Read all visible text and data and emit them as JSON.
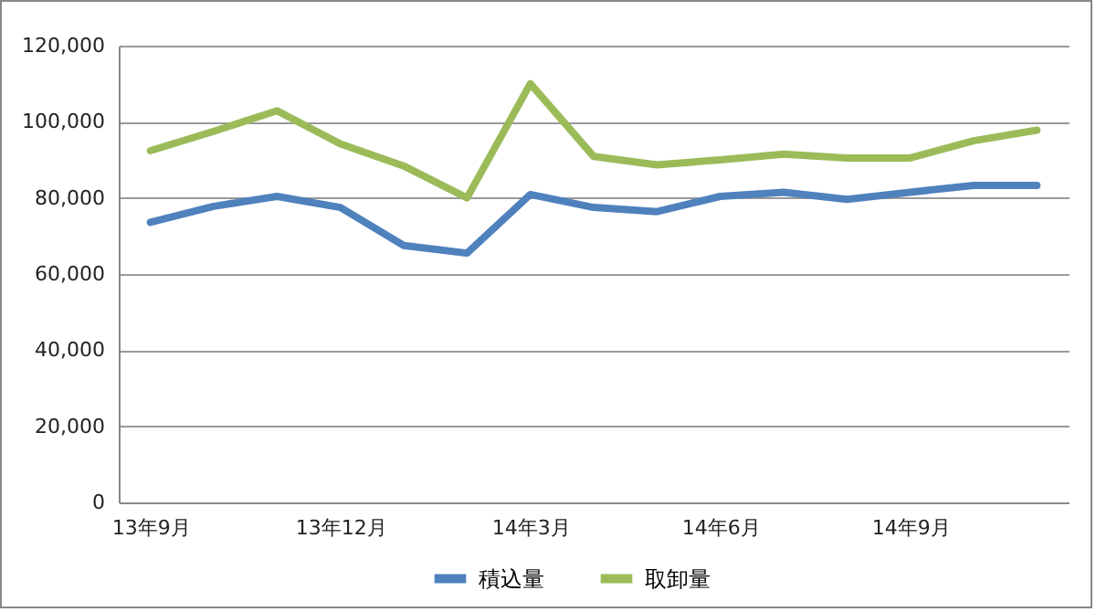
{
  "chart_data": {
    "type": "line",
    "categories": [
      "13年9月",
      null,
      null,
      "13年12月",
      null,
      null,
      "14年3月",
      null,
      null,
      "14年6月",
      null,
      null,
      "14年9月",
      null,
      null
    ],
    "series": [
      {
        "name": "積込量",
        "color": "#4f81bd",
        "values": [
          73600,
          77800,
          80400,
          77500,
          67500,
          65500,
          80900,
          77500,
          76400,
          80400,
          81500,
          79600,
          81500,
          83300,
          83300
        ]
      },
      {
        "name": "取卸量",
        "color": "#9bbb59",
        "values": [
          92400,
          97500,
          102900,
          94200,
          88400,
          80000,
          110000,
          90900,
          88700,
          90000,
          91500,
          90500,
          90500,
          95000,
          97800
        ]
      }
    ],
    "ylim": [
      0,
      120000
    ],
    "yticks": [
      0,
      {
        "value": 20000,
        "label": "20,000"
      },
      {
        "value": 40000,
        "label": "40,000"
      },
      {
        "value": 60000,
        "label": "60,000"
      },
      {
        "value": 80000,
        "label": "80,000"
      },
      {
        "value": 100000,
        "label": "100,000"
      },
      {
        "value": 120000,
        "label": "120,000"
      }
    ],
    "grid": "y",
    "legend": "bottom",
    "marker": "none",
    "line_style": "solid"
  }
}
